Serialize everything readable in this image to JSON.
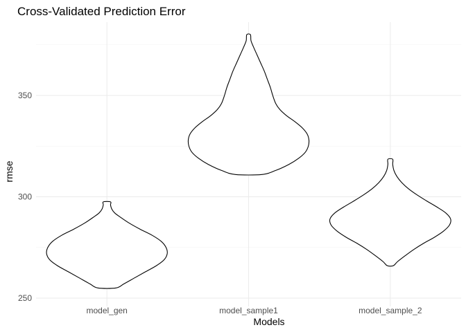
{
  "chart_data": {
    "type": "violin",
    "title": "Cross-Validated Prediction Error",
    "xlabel": "Models",
    "ylabel": "rmse",
    "categories": [
      "model_gen",
      "model_sample1",
      "model_sample_2"
    ],
    "ylim": [
      245,
      384
    ],
    "y_ticks": [
      250,
      300,
      350
    ],
    "grid": true,
    "series": [
      {
        "category": "model_gen",
        "min": 255,
        "max": 297.5,
        "density_profile": [
          [
            255,
            0.15
          ],
          [
            257,
            0.28
          ],
          [
            260,
            0.46
          ],
          [
            263,
            0.64
          ],
          [
            266,
            0.82
          ],
          [
            269,
            0.95
          ],
          [
            272,
            1.0
          ],
          [
            275,
            0.98
          ],
          [
            278,
            0.9
          ],
          [
            281,
            0.75
          ],
          [
            284,
            0.55
          ],
          [
            287,
            0.37
          ],
          [
            290,
            0.22
          ],
          [
            292,
            0.13
          ],
          [
            294,
            0.08
          ],
          [
            296,
            0.06
          ],
          [
            297.5,
            0.06
          ]
        ]
      },
      {
        "category": "model_sample1",
        "min": 311,
        "max": 380,
        "density_profile": [
          [
            311,
            0.22
          ],
          [
            313,
            0.45
          ],
          [
            316,
            0.67
          ],
          [
            319,
            0.83
          ],
          [
            322,
            0.94
          ],
          [
            325,
            0.99
          ],
          [
            328,
            1.0
          ],
          [
            331,
            0.97
          ],
          [
            334,
            0.89
          ],
          [
            337,
            0.77
          ],
          [
            340,
            0.63
          ],
          [
            343,
            0.52
          ],
          [
            346,
            0.45
          ],
          [
            350,
            0.4
          ],
          [
            354,
            0.36
          ],
          [
            358,
            0.31
          ],
          [
            362,
            0.26
          ],
          [
            366,
            0.2
          ],
          [
            370,
            0.14
          ],
          [
            374,
            0.08
          ],
          [
            377,
            0.04
          ],
          [
            380,
            0.03
          ]
        ]
      },
      {
        "category": "model_sample_2",
        "min": 266,
        "max": 318.5,
        "density_profile": [
          [
            266,
            0.05
          ],
          [
            268,
            0.12
          ],
          [
            271,
            0.25
          ],
          [
            274,
            0.39
          ],
          [
            277,
            0.55
          ],
          [
            280,
            0.73
          ],
          [
            283,
            0.88
          ],
          [
            286,
            0.98
          ],
          [
            289,
            1.0
          ],
          [
            292,
            0.92
          ],
          [
            295,
            0.77
          ],
          [
            298,
            0.6
          ],
          [
            301,
            0.44
          ],
          [
            304,
            0.3
          ],
          [
            307,
            0.19
          ],
          [
            310,
            0.11
          ],
          [
            313,
            0.06
          ],
          [
            316,
            0.04
          ],
          [
            318.5,
            0.04
          ]
        ]
      }
    ]
  }
}
